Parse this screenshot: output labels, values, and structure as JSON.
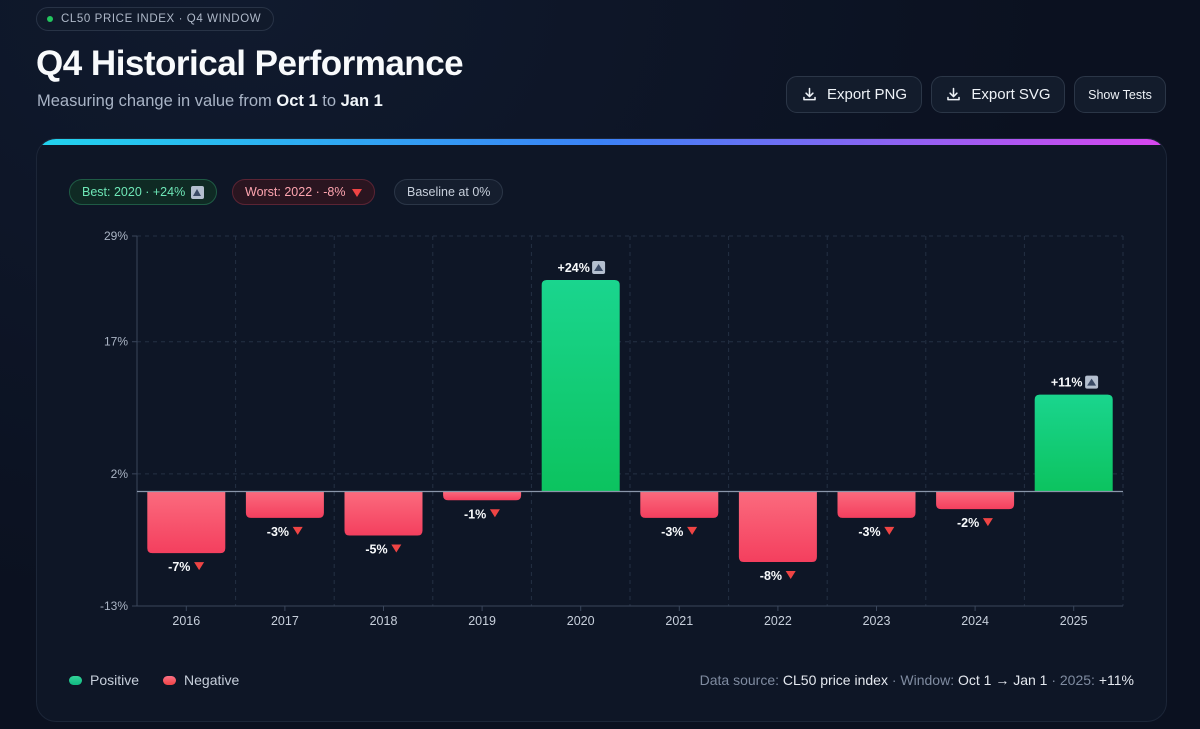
{
  "header": {
    "badge": "CL50 PRICE INDEX · Q4 WINDOW",
    "title": "Q4 Historical Performance",
    "subtitle_prefix": "Measuring change in value from ",
    "subtitle_start": "Oct 1",
    "subtitle_mid": " to ",
    "subtitle_end": "Jan 1"
  },
  "toolbar": {
    "export_png": "Export PNG",
    "export_svg": "Export SVG",
    "show_tests": "Show Tests"
  },
  "chips": {
    "best": "Best: 2020 · +24%",
    "worst": "Worst: 2022 · -8%",
    "baseline": "Baseline at 0%"
  },
  "colors": {
    "positive_top": "#1ad58e",
    "positive_bottom": "#0cc35f",
    "negative_top": "#fb6b7e",
    "negative_bottom": "#f43f5e",
    "accent_cyan": "#22d3ee",
    "accent_magenta": "#d946ef"
  },
  "chart_data": {
    "type": "bar",
    "title": "Q4 Historical Performance",
    "xlabel": "",
    "ylabel": "",
    "categories": [
      "2016",
      "2017",
      "2018",
      "2019",
      "2020",
      "2021",
      "2022",
      "2023",
      "2024",
      "2025"
    ],
    "values": [
      -7,
      -3,
      -5,
      -1,
      24,
      -3,
      -8,
      -3,
      -2,
      11
    ],
    "labels": [
      "-7%",
      "-3%",
      "-5%",
      "-1%",
      "+24%",
      "-3%",
      "-8%",
      "-3%",
      "-2%",
      "+11%"
    ],
    "ylim": [
      -13,
      29
    ],
    "yticks": [
      29,
      17,
      2,
      -13
    ],
    "ytick_labels": [
      "29%",
      "17%",
      "2%",
      "-13%"
    ],
    "baseline": 0,
    "grid": true
  },
  "legend": {
    "positive": "Positive",
    "negative": "Negative"
  },
  "footer": {
    "source_label": "Data source: ",
    "source_value": "CL50 price index",
    "window_label": " · Window: ",
    "window_value": "Oct 1 → Jan 1",
    "latest_label": " · 2025: ",
    "latest_value": "+11%"
  }
}
